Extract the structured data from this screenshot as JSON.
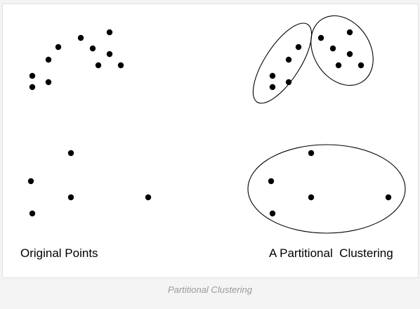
{
  "figure": {
    "left_panel_title": "Original Points",
    "right_panel_title": "A Partitional  Clustering",
    "caption": "Partitional Clustering",
    "point_color": "#000000",
    "outline_color": "#000000"
  }
}
